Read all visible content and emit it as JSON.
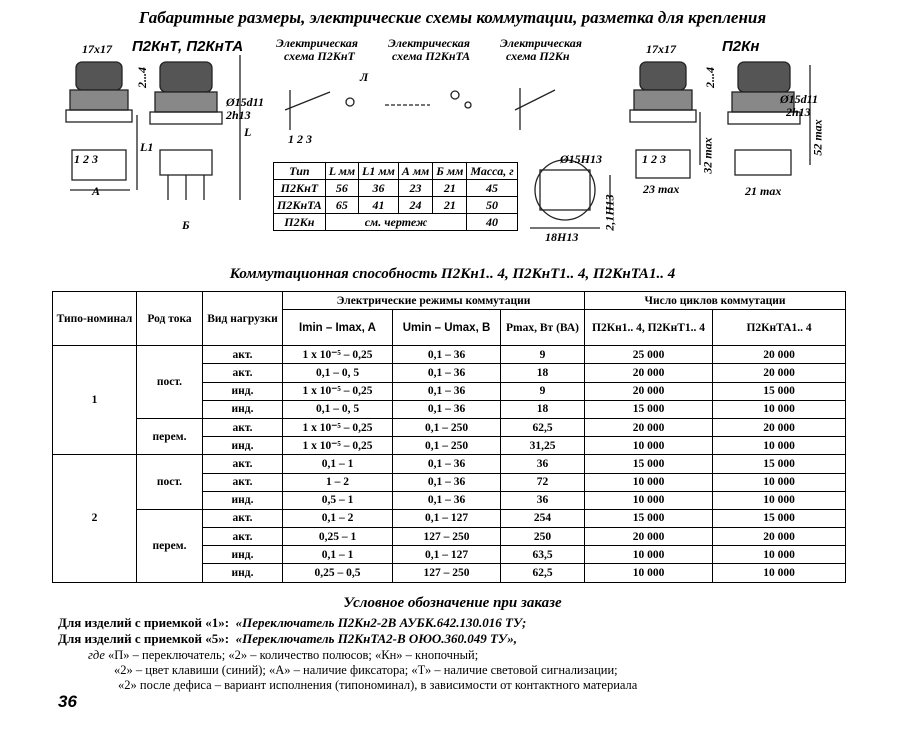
{
  "title": "Габаритные размеры, электрические схемы коммутации, разметка для крепления",
  "drawings": {
    "left_model": "П2КнТ, П2КнТА",
    "right_model": "П2Кн",
    "size_left": "17x17",
    "size_right": "17x17",
    "stroke_left": "2...4",
    "stroke_right": "2...4",
    "dia_left": "Ø15d11",
    "h_left": "2h13",
    "dia_right": "Ø15d11",
    "h_right": "2h13",
    "dim_L": "L",
    "dim_L1": "L1",
    "dim_A": "А",
    "dim_B": "Б",
    "pins_left": "1  2  3",
    "pins_right": "1  2  3",
    "max32": "32 max",
    "max52": "52 max",
    "max23": "23 max",
    "max21": "21 max",
    "cut_dia": "Ø15H13",
    "cut_w": "18H13",
    "cut_h": "2,1H13",
    "schemes": [
      {
        "title1": "Электрическая",
        "title2": "схема П2КнТ"
      },
      {
        "title1": "Электрическая",
        "title2": "схема П2КнТА"
      },
      {
        "title1": "Электрическая",
        "title2": "схема П2Кн"
      }
    ],
    "lamp": "Л",
    "pin_nums": "1  2  3"
  },
  "dims_table": {
    "headers": [
      "Тип",
      "L мм",
      "L1 мм",
      "А мм",
      "Б мм",
      "Масса, г"
    ],
    "rows": [
      [
        "П2КнТ",
        "56",
        "36",
        "23",
        "21",
        "45"
      ],
      [
        "П2КнТА",
        "65",
        "41",
        "24",
        "21",
        "50"
      ]
    ],
    "last_row": {
      "type": "П2Кн",
      "note": "см. чертеж",
      "mass": "40"
    }
  },
  "table_title": "Коммутационная способность П2Кн1.. 4,  П2КнТ1.. 4, П2КнТА1.. 4",
  "main_table": {
    "h_type": "Типо-номинал",
    "h_current": "Род тока",
    "h_load": "Вид нагрузки",
    "h_modes": "Электрические режимы коммутации",
    "h_cycles": "Число циклов коммутации",
    "h_i": "Imin – Imax, A",
    "h_u": "Umin – Umax, B",
    "h_p": "Pmax, Вт (ВА)",
    "h_c1": "П2Кн1.. 4, П2КнТ1.. 4",
    "h_c2": "П2КнТА1.. 4",
    "groups": [
      {
        "nominal": "1",
        "sub": [
          {
            "current": "пост.",
            "rows": [
              [
                "акт.",
                "1 x 10⁻⁵ – 0,25",
                "0,1 – 36",
                "9",
                "25 000",
                "20 000"
              ],
              [
                "акт.",
                "0,1 – 0, 5",
                "0,1 – 36",
                "18",
                "20 000",
                "20 000"
              ],
              [
                "инд.",
                "1 x 10⁻⁵ – 0,25",
                "0,1 – 36",
                "9",
                "20 000",
                "15 000"
              ],
              [
                "инд.",
                "0,1 – 0, 5",
                "0,1 – 36",
                "18",
                "15 000",
                "10 000"
              ]
            ]
          },
          {
            "current": "перем.",
            "rows": [
              [
                "акт.",
                "1 x 10⁻⁵ – 0,25",
                "0,1 – 250",
                "62,5",
                "20 000",
                "20 000"
              ],
              [
                "инд.",
                "1 x 10⁻⁵ – 0,25",
                "0,1 – 250",
                "31,25",
                "10 000",
                "10 000"
              ]
            ]
          }
        ]
      },
      {
        "nominal": "2",
        "sub": [
          {
            "current": "пост.",
            "rows": [
              [
                "акт.",
                "0,1 – 1",
                "0,1 – 36",
                "36",
                "15 000",
                "15 000"
              ],
              [
                "акт.",
                "1 – 2",
                "0,1 – 36",
                "72",
                "10 000",
                "10 000"
              ],
              [
                "инд.",
                "0,5 – 1",
                "0,1 – 36",
                "36",
                "10 000",
                "10 000"
              ]
            ]
          },
          {
            "current": "перем.",
            "rows": [
              [
                "акт.",
                "0,1 – 2",
                "0,1 – 127",
                "254",
                "15 000",
                "15 000"
              ],
              [
                "акт.",
                "0,25 – 1",
                "127 – 250",
                "250",
                "20 000",
                "20 000"
              ],
              [
                "инд.",
                "0,1 – 1",
                "0,1 – 127",
                "63,5",
                "10 000",
                "10 000"
              ],
              [
                "инд.",
                "0,25 – 0,5",
                "127 – 250",
                "62,5",
                "10 000",
                "10 000"
              ]
            ]
          }
        ]
      }
    ]
  },
  "order": {
    "title": "Условное обозначение при заказе",
    "line1_a": "Для изделий с приемкой «1»:",
    "line1_b": "«Переключатель П2Кн2-2В  АУБК.642.130.016 ТУ;",
    "line2_a": "Для изделий с приемкой «5»:",
    "line2_b": "«Переключатель П2КнТА2-В ОЮО.360.049 ТУ»,",
    "where": "где",
    "line3": "«П» – переключатель; «2» – количество полюсов; «Кн» – кнопочный;",
    "line4": "«2» – цвет клавиши (синий); «А» – наличие фиксатора; «Т» – наличие световой сигнализации;",
    "line5": "«2» после дефиса – вариант исполнения (типономинал), в зависимости от контактного материала"
  },
  "page_number": "36"
}
